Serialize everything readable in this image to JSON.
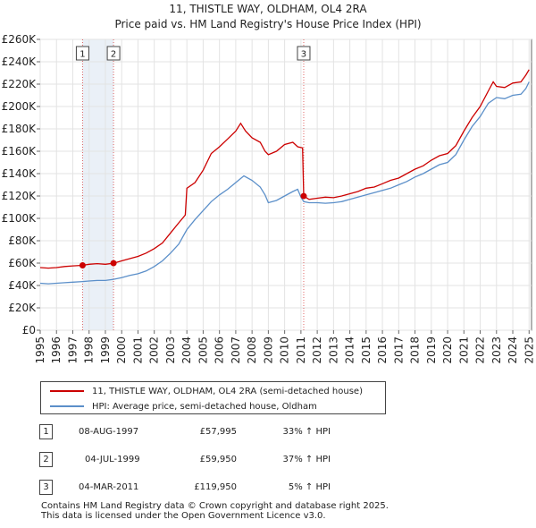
{
  "chart_data": {
    "type": "line",
    "title": "11, THISTLE WAY, OLDHAM, OL4 2RA",
    "subtitle": "Price paid vs. HM Land Registry's House Price Index (HPI)",
    "xlim": [
      1995.0,
      2025.15
    ],
    "ylim": [
      0,
      260000
    ],
    "y_ticks": [
      0,
      20000,
      40000,
      60000,
      80000,
      100000,
      120000,
      140000,
      160000,
      180000,
      200000,
      220000,
      240000,
      260000
    ],
    "y_tick_labels": [
      "£0",
      "£20K",
      "£40K",
      "£60K",
      "£80K",
      "£100K",
      "£120K",
      "£140K",
      "£160K",
      "£180K",
      "£200K",
      "£220K",
      "£240K",
      "£260K"
    ],
    "x_ticks": [
      1995,
      1996,
      1997,
      1998,
      1999,
      2000,
      2001,
      2002,
      2003,
      2004,
      2005,
      2006,
      2007,
      2008,
      2009,
      2010,
      2011,
      2012,
      2013,
      2014,
      2015,
      2016,
      2017,
      2018,
      2019,
      2020,
      2021,
      2022,
      2023,
      2024,
      2025
    ],
    "x_tick_labels": [
      "1995",
      "1996",
      "1997",
      "1998",
      "1999",
      "2000",
      "2001",
      "2002",
      "2003",
      "2004",
      "2005",
      "2006",
      "2007",
      "2008",
      "2009",
      "2010",
      "2011",
      "2012",
      "2013",
      "2014",
      "2015",
      "2016",
      "2017",
      "2018",
      "2019",
      "2020",
      "2021",
      "2022",
      "2023",
      "2024",
      "2025"
    ],
    "grid": true,
    "series": [
      {
        "name": "11, THISTLE WAY, OLDHAM, OL4 2RA (semi-detached house)",
        "color": "#cc0000",
        "x": [
          1995.0,
          1995.5,
          1996.0,
          1996.5,
          1997.0,
          1997.6,
          1998.0,
          1998.5,
          1999.0,
          1999.5,
          2000.0,
          2000.5,
          2001.0,
          2001.5,
          2002.0,
          2002.5,
          2003.0,
          2003.5,
          2003.9,
          2004.0,
          2004.5,
          2005.0,
          2005.5,
          2006.0,
          2006.5,
          2007.0,
          2007.3,
          2007.6,
          2008.0,
          2008.5,
          2008.8,
          2009.0,
          2009.5,
          2010.0,
          2010.5,
          2010.8,
          2011.1,
          2011.17,
          2011.5,
          2012.0,
          2012.5,
          2013.0,
          2013.5,
          2014.0,
          2014.5,
          2015.0,
          2015.5,
          2016.0,
          2016.5,
          2017.0,
          2017.5,
          2018.0,
          2018.5,
          2019.0,
          2019.5,
          2020.0,
          2020.5,
          2021.0,
          2021.5,
          2022.0,
          2022.5,
          2022.8,
          2023.0,
          2023.5,
          2024.0,
          2024.5,
          2024.8,
          2025.0
        ],
        "y": [
          56000,
          55500,
          56000,
          57000,
          57500,
          57995,
          59000,
          59500,
          59000,
          59950,
          62000,
          64000,
          66000,
          69000,
          73000,
          78000,
          87000,
          96000,
          103000,
          127000,
          132000,
          143000,
          158000,
          164000,
          171000,
          178000,
          185000,
          178000,
          172000,
          168000,
          160000,
          157000,
          160000,
          166000,
          168000,
          164000,
          163000,
          119950,
          117000,
          118000,
          119000,
          118500,
          120000,
          122000,
          124000,
          127000,
          128000,
          131000,
          134000,
          136000,
          140000,
          144000,
          147000,
          152000,
          156000,
          158000,
          165000,
          178000,
          190000,
          200000,
          214000,
          222000,
          218000,
          217000,
          221000,
          222000,
          228000,
          233000
        ]
      },
      {
        "name": "HPI: Average price, semi-detached house, Oldham",
        "color": "#5b8fc9",
        "x": [
          1995.0,
          1995.5,
          1996.0,
          1996.5,
          1997.0,
          1997.6,
          1998.0,
          1998.5,
          1999.0,
          1999.5,
          2000.0,
          2000.5,
          2001.0,
          2001.5,
          2002.0,
          2002.5,
          2003.0,
          2003.5,
          2004.0,
          2004.5,
          2005.0,
          2005.5,
          2006.0,
          2006.5,
          2007.0,
          2007.5,
          2008.0,
          2008.5,
          2008.8,
          2009.0,
          2009.5,
          2010.0,
          2010.5,
          2010.8,
          2011.0,
          2011.17,
          2011.5,
          2012.0,
          2012.5,
          2013.0,
          2013.5,
          2014.0,
          2014.5,
          2015.0,
          2015.5,
          2016.0,
          2016.5,
          2017.0,
          2017.5,
          2018.0,
          2018.5,
          2019.0,
          2019.5,
          2020.0,
          2020.5,
          2021.0,
          2021.5,
          2022.0,
          2022.5,
          2023.0,
          2023.5,
          2024.0,
          2024.5,
          2024.8,
          2025.0
        ],
        "y": [
          42000,
          41500,
          42000,
          42500,
          43000,
          43500,
          44000,
          44500,
          44500,
          45500,
          47000,
          49000,
          50500,
          53000,
          57000,
          62000,
          69000,
          77000,
          90000,
          99000,
          107000,
          115000,
          121000,
          126000,
          132000,
          138000,
          134000,
          128000,
          121000,
          114000,
          116000,
          120000,
          124000,
          126000,
          119000,
          115000,
          114000,
          114000,
          113500,
          114000,
          115000,
          117000,
          119000,
          121000,
          123000,
          125000,
          127000,
          130000,
          133000,
          137000,
          140000,
          144000,
          148000,
          150000,
          157000,
          170000,
          182000,
          191000,
          203000,
          208000,
          207000,
          210000,
          211000,
          216000,
          222000
        ]
      }
    ],
    "sales": [
      {
        "num": "1",
        "date": "08-AUG-1997",
        "price": "£57,995",
        "hpi": "33% ↑ HPI",
        "x": 1997.6,
        "y": 57995
      },
      {
        "num": "2",
        "date": "04-JUL-1999",
        "price": "£59,950",
        "hpi": "37% ↑ HPI",
        "x": 1999.5,
        "y": 59950
      },
      {
        "num": "3",
        "date": "04-MAR-2011",
        "price": "£119,950",
        "hpi": "5% ↑ HPI",
        "x": 2011.17,
        "y": 119950
      }
    ],
    "shaded_range": [
      1997.6,
      1999.5
    ]
  },
  "footer": {
    "line1": "Contains HM Land Registry data © Crown copyright and database right 2025.",
    "line2": "This data is licensed under the Open Government Licence v3.0."
  }
}
